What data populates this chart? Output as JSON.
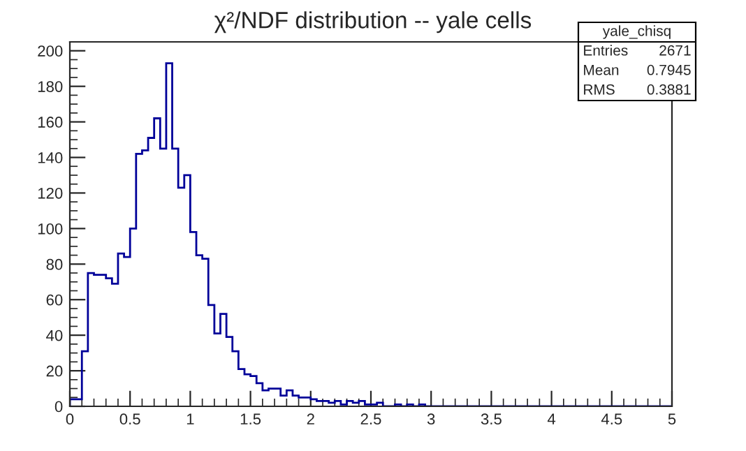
{
  "chart_data": {
    "type": "histogram",
    "title": "χ²/NDF distribution -- yale cells",
    "bins": [
      0,
      0.05,
      0.1,
      0.15,
      0.2,
      0.25,
      0.3,
      0.35,
      0.4,
      0.45,
      0.5,
      0.55,
      0.6,
      0.65,
      0.7,
      0.75,
      0.8,
      0.85,
      0.9,
      0.95,
      1,
      1.05,
      1.1,
      1.15,
      1.2,
      1.25,
      1.3,
      1.35,
      1.4,
      1.45,
      1.5,
      1.55,
      1.6,
      1.65,
      1.7,
      1.75,
      1.8,
      1.85,
      1.9,
      1.95,
      2,
      2.05,
      2.1,
      2.15,
      2.2,
      2.25,
      2.3,
      2.35,
      2.4,
      2.45,
      2.5,
      2.55,
      2.6,
      2.65,
      2.7,
      2.75,
      2.8,
      2.85,
      2.9,
      2.95,
      3,
      3.05,
      3.1,
      3.15,
      3.2,
      3.25,
      3.3,
      3.35,
      3.4,
      3.45,
      3.5,
      3.55,
      3.6,
      3.65,
      3.7,
      3.75,
      3.8,
      3.85,
      3.9,
      3.95,
      4,
      4.05,
      4.1,
      4.15,
      4.2,
      4.25,
      4.3,
      4.35,
      4.4,
      4.45,
      4.5,
      4.55,
      4.6,
      4.65,
      4.7,
      4.75,
      4.8,
      4.85,
      4.9,
      4.95,
      5
    ],
    "values": [
      4,
      4,
      31,
      75,
      74,
      74,
      72,
      69,
      86,
      84,
      100,
      142,
      144,
      151,
      162,
      145,
      193,
      145,
      123,
      130,
      98,
      85,
      83,
      57,
      41,
      52,
      39,
      31,
      21,
      18,
      17,
      13,
      9,
      10,
      10,
      6,
      9,
      6,
      5,
      5,
      4,
      3,
      3,
      2,
      3,
      1,
      3,
      2,
      3,
      1,
      1,
      2,
      0,
      0,
      1,
      0,
      1,
      0,
      1,
      0,
      0,
      0,
      0,
      0,
      0,
      0,
      0,
      0,
      0,
      0,
      0,
      0,
      0,
      0,
      0,
      0,
      0,
      0,
      0,
      0,
      0,
      0,
      0,
      0,
      0,
      0,
      0,
      0,
      0,
      0,
      0,
      0,
      0,
      0,
      0,
      0,
      0,
      0,
      0,
      0
    ],
    "color": "#000099",
    "xlim": [
      0,
      5
    ],
    "xticks": [
      0,
      0.5,
      1,
      1.5,
      2,
      2.5,
      3,
      3.5,
      4,
      4.5,
      5
    ],
    "ylim": [
      0,
      205
    ],
    "yticks": [
      0,
      20,
      40,
      60,
      80,
      100,
      120,
      140,
      160,
      180,
      200
    ],
    "grid": false,
    "annotations": [
      "yale_chisq",
      "Entries",
      "2671",
      "Mean",
      "0.7945",
      "RMS",
      "0.3881"
    ]
  }
}
